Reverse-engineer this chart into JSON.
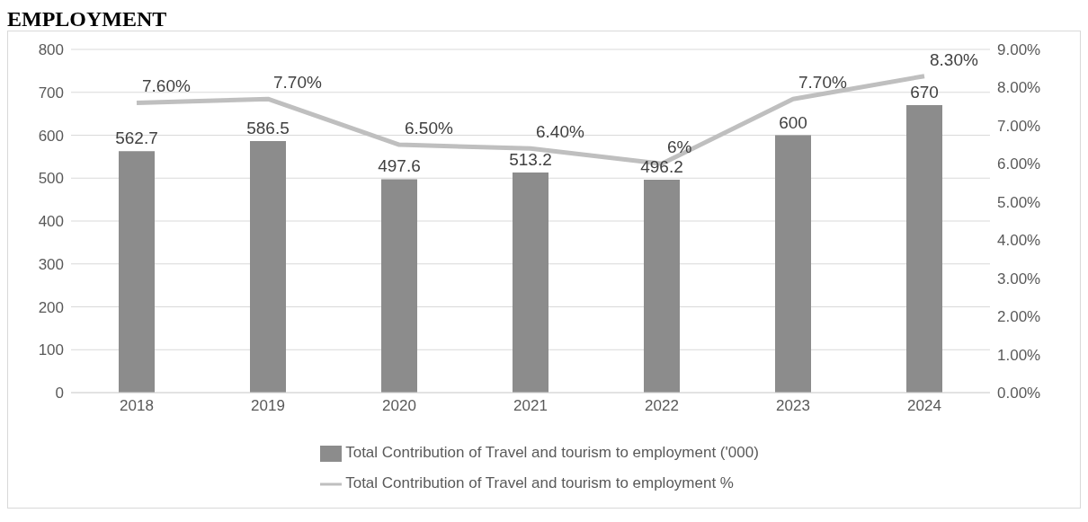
{
  "chart_data": {
    "type": "bar",
    "title": "EMPLOYMENT",
    "categories": [
      "2018",
      "2019",
      "2020",
      "2021",
      "2022",
      "2023",
      "2024"
    ],
    "series": [
      {
        "name": "Total Contribution of Travel and tourism to employment ('000)",
        "color": "#8c8c8c",
        "values": [
          562.7,
          586.5,
          497.6,
          513.2,
          496.2,
          600,
          670
        ],
        "value_labels": [
          "562.7",
          "586.5",
          "497.6",
          "513.2",
          "496.2",
          "600",
          "670"
        ]
      },
      {
        "name": "Total Contribution of Travel and tourism to employment %",
        "type": "line",
        "axis": "y2",
        "color": "#bfbfbf",
        "values": [
          7.6,
          7.7,
          6.5,
          6.4,
          6,
          7.7,
          8.3
        ],
        "value_labels": [
          "7.60%",
          "7.70%",
          "6.50%",
          "6.40%",
          "6%",
          "7.70%",
          "8.30%"
        ]
      }
    ],
    "ylim": [
      0,
      800
    ],
    "yticks": [
      0,
      100,
      200,
      300,
      400,
      500,
      600,
      700,
      800
    ],
    "y2lim": [
      0,
      9
    ],
    "y2ticks": [
      {
        "value": 0,
        "label": "0.00%"
      },
      {
        "value": 1,
        "label": "1.00%"
      },
      {
        "value": 2,
        "label": "2.00%"
      },
      {
        "value": 3,
        "label": "3.00%"
      },
      {
        "value": 4,
        "label": "4.00%"
      },
      {
        "value": 5,
        "label": "5.00%"
      },
      {
        "value": 6,
        "label": "6.00%"
      },
      {
        "value": 7,
        "label": "7.00%"
      },
      {
        "value": 8,
        "label": "8.00%"
      },
      {
        "value": 9,
        "label": "9.00%"
      }
    ],
    "grid": "y",
    "legend": "bottom",
    "marker": "none"
  }
}
